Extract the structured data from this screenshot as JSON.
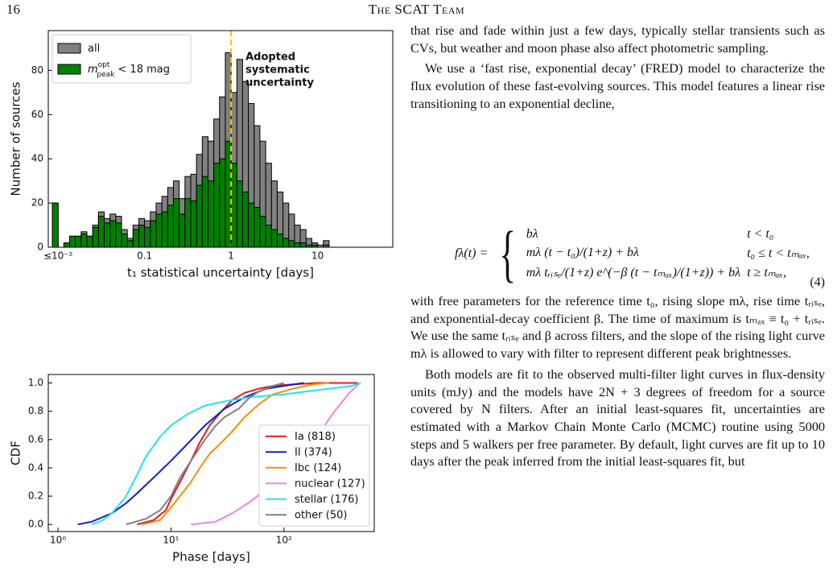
{
  "header": {
    "page_number": "16",
    "running_title": "The SCAT Team"
  },
  "chart_data": [
    {
      "type": "histogram",
      "ylabel": "Number of sources",
      "xlabel": "t₁ statistical uncertainty [days]",
      "xscale": "log",
      "xlim": [
        0.0077,
        74
      ],
      "ylim": [
        0,
        98
      ],
      "xticks": [
        {
          "value": 0.01,
          "label": "≤10⁻²"
        },
        0.1,
        1,
        10
      ],
      "yticks": [
        0,
        20,
        40,
        60,
        80
      ],
      "legend": "upper left",
      "vline": 1,
      "vline_color": "#f5c400",
      "annotation": [
        "Adopted",
        "systematic",
        "uncertainty"
      ],
      "bins": [
        0.00858,
        0.01,
        0.01166,
        0.01359,
        0.01585,
        0.01848,
        0.02154,
        0.02512,
        0.02929,
        0.03415,
        0.03981,
        0.04642,
        0.05412,
        0.0631,
        0.07356,
        0.08577,
        0.1,
        0.1166,
        0.1359,
        0.1585,
        0.1848,
        0.2154,
        0.2512,
        0.2929,
        0.3415,
        0.3981,
        0.4642,
        0.5412,
        0.631,
        0.7356,
        0.8577,
        1,
        1.166,
        1.359,
        1.585,
        1.848,
        2.154,
        2.512,
        2.929,
        3.415,
        3.981,
        4.642,
        5.412,
        6.31,
        7.356,
        8.577,
        10,
        11.66,
        13.59
      ],
      "series": [
        {
          "name": "all",
          "color": "#808080",
          "values": [
            20,
            0,
            2,
            5,
            5,
            7,
            5,
            10,
            16,
            13,
            15,
            14,
            8,
            4,
            10,
            13,
            12,
            16,
            20,
            23,
            27,
            30,
            22,
            32,
            33,
            42,
            50,
            48,
            58,
            68,
            88,
            70,
            85,
            75,
            65,
            55,
            48,
            38,
            30,
            25,
            20,
            15,
            10,
            8,
            4,
            2,
            1,
            3
          ]
        },
        {
          "name": "m",
          "name_superscript": "opt",
          "name_subscript": "peak",
          "name_suffix": "< 18 mag",
          "color": "#008000",
          "values": [
            20,
            0,
            2,
            5,
            5,
            6,
            5,
            9,
            14,
            11,
            12,
            11,
            6,
            3,
            8,
            10,
            9,
            12,
            15,
            16,
            19,
            22,
            15,
            22,
            21,
            28,
            32,
            30,
            38,
            40,
            48,
            38,
            30,
            25,
            20,
            18,
            14,
            10,
            8,
            6,
            4,
            3,
            2,
            2,
            1,
            1,
            0,
            1
          ]
        }
      ]
    },
    {
      "type": "line",
      "ylabel": "CDF",
      "xlabel": "Phase [days]",
      "xscale": "log",
      "xlim": [
        0.82,
        630
      ],
      "ylim": [
        -0.05,
        1.06
      ],
      "xticks": [
        {
          "value": 1,
          "label": "10⁰"
        },
        {
          "value": 10,
          "label": "10¹"
        },
        {
          "value": 100,
          "label": "10²"
        }
      ],
      "yticks": [
        {
          "value": 0,
          "label": "0.0"
        },
        0.2,
        0.4,
        0.6,
        0.8,
        {
          "value": 1,
          "label": "1.0"
        }
      ],
      "legend": "lower right",
      "series": [
        {
          "name": "Ia (818)",
          "color": "#e31a1c",
          "x": [
            5,
            7,
            9,
            10,
            12,
            15,
            18,
            22,
            28,
            35,
            45,
            60,
            80,
            120,
            200,
            450
          ],
          "values": [
            0,
            0.03,
            0.1,
            0.18,
            0.3,
            0.45,
            0.58,
            0.7,
            0.8,
            0.88,
            0.93,
            0.96,
            0.98,
            0.99,
            1.0,
            1.0
          ]
        },
        {
          "name": "II (374)",
          "color": "#0a1fd0",
          "x": [
            1.5,
            2,
            3,
            4,
            5,
            7,
            10,
            14,
            20,
            30,
            45,
            70,
            100,
            150
          ],
          "values": [
            0,
            0.02,
            0.08,
            0.15,
            0.22,
            0.33,
            0.45,
            0.57,
            0.7,
            0.82,
            0.9,
            0.96,
            0.98,
            1.0
          ]
        },
        {
          "name": "Ibc (124)",
          "color": "#ff8c00",
          "x": [
            5.5,
            8,
            10,
            12,
            15,
            18,
            22,
            28,
            35,
            45,
            60,
            80,
            120,
            180,
            250
          ],
          "values": [
            0,
            0.03,
            0.12,
            0.2,
            0.3,
            0.4,
            0.5,
            0.58,
            0.66,
            0.76,
            0.85,
            0.92,
            0.96,
            0.99,
            1.0
          ]
        },
        {
          "name": "nuclear (127)",
          "color": "#ee82ee",
          "x": [
            15,
            25,
            35,
            50,
            70,
            100,
            150,
            200,
            280,
            380,
            470
          ],
          "values": [
            0,
            0.02,
            0.08,
            0.16,
            0.25,
            0.35,
            0.5,
            0.63,
            0.8,
            0.93,
            1.0
          ]
        },
        {
          "name": "stellar (176)",
          "color": "#22e6f0",
          "x": [
            2,
            2.5,
            3,
            4,
            5,
            6,
            8,
            10,
            14,
            20,
            30,
            50,
            100,
            200,
            400,
            480
          ],
          "values": [
            0,
            0.03,
            0.08,
            0.2,
            0.35,
            0.48,
            0.62,
            0.7,
            0.78,
            0.84,
            0.87,
            0.9,
            0.92,
            0.95,
            0.98,
            1.0
          ]
        },
        {
          "name": "other (50)",
          "color": "#808080",
          "x": [
            4,
            6,
            8,
            10,
            12,
            15,
            20,
            25,
            30,
            40,
            50,
            60,
            80,
            100
          ],
          "values": [
            0,
            0.04,
            0.1,
            0.2,
            0.33,
            0.45,
            0.6,
            0.7,
            0.76,
            0.82,
            0.9,
            0.94,
            0.98,
            1.0
          ]
        }
      ]
    }
  ],
  "body": {
    "paragraph_1": "that rise and fade within just a few days, typically stellar transients such as CVs, but weather and moon phase also affect photometric sampling.",
    "paragraph_2": "We use a ‘fast rise, exponential decay’ (FRED) model to characterize the flux evolution of these fast-evolving sources. This model features a linear rise transitioning to an exponential decline,",
    "equation": {
      "lhs": "fλ(t) =",
      "rows": [
        [
          "bλ",
          "t < t₀"
        ],
        [
          "mλ (t − t₀)/(1+z) + bλ",
          "t₀ ≤ t < tₘₐₓ,"
        ],
        [
          "mλ tᵣᵢₛₑ/(1+z) e^(−β (t − tₘₐₓ)/(1+z)) + bλ",
          "t ≥ tₘₐₓ,"
        ]
      ],
      "number": "(4)"
    },
    "paragraph_3": "with free parameters for the reference time t₀, rising slope mλ, rise time tᵣᵢₛₑ, and exponential-decay coefficient β. The time of maximum is tₘₐₓ ≡ t₀ + tᵣᵢₛₑ. We use the same tᵣᵢₛₑ and β across filters, and the slope of the rising light curve mλ is allowed to vary with filter to represent different peak brightnesses.",
    "paragraph_4": "Both models are fit to the observed multi-filter light curves in flux-density units (mJy) and the models have 2N + 3 degrees of freedom for a source covered by N filters. After an initial least-squares fit, uncertainties are estimated with a Markov Chain Monte Carlo (MCMC) routine using 5000 steps and 5 walkers per free parameter. By default, light curves are fit up to 10 days after the peak inferred from the initial least-squares fit, but"
  }
}
